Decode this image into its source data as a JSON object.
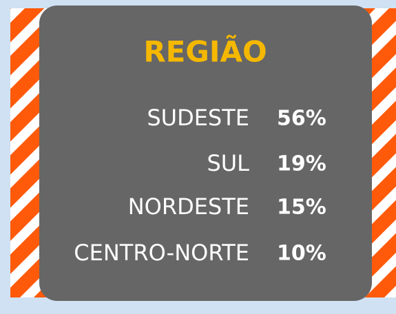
{
  "title": "REGIÃO",
  "rows": [
    {
      "label": "SUDESTE",
      "value": "56%"
    },
    {
      "label": "SUL",
      "value": "19%"
    },
    {
      "label": "NORDESTE",
      "value": "15%"
    },
    {
      "label": "CENTRO-NORTE",
      "value": "10%"
    }
  ]
}
